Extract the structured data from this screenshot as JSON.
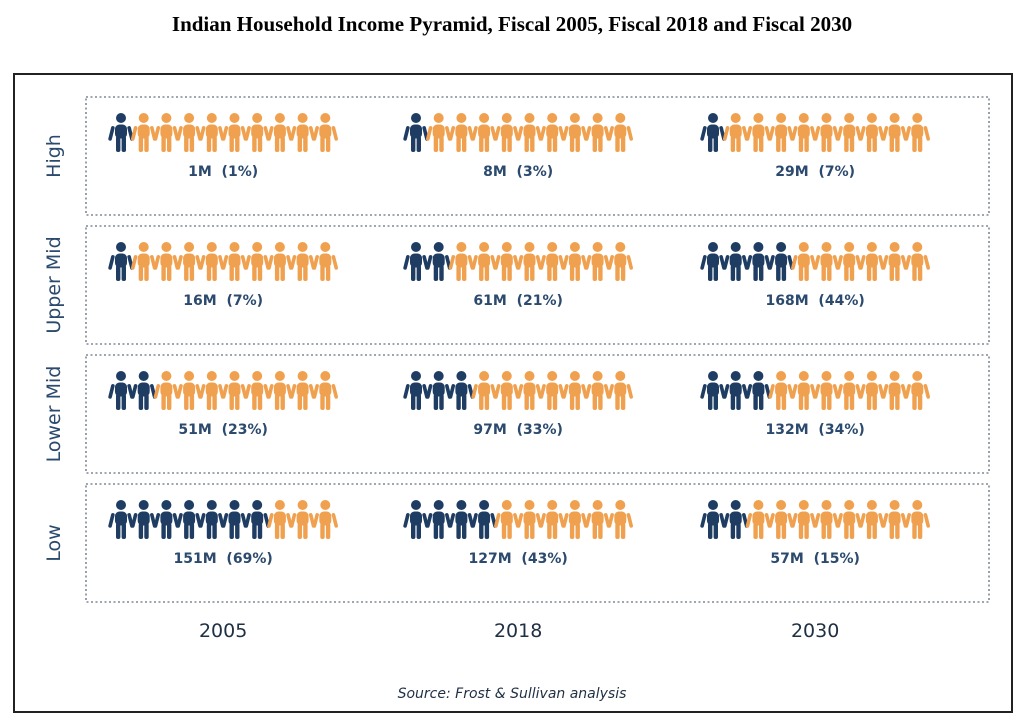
{
  "title": "Indian Household Income Pyramid, Fiscal 2005, Fiscal 2018 and Fiscal 2030",
  "source": "Source: Frost & Sullivan analysis",
  "colors": {
    "filled": "#1f3d63",
    "empty": "#f0a150",
    "text": "#2b4a6e"
  },
  "icon": "person-icon",
  "chart_data": {
    "type": "pictogram",
    "icons_per_cell": 10,
    "columns": [
      "2005",
      "2018",
      "2030"
    ],
    "rows": [
      {
        "label": "High",
        "cells": [
          {
            "filled": 1,
            "text": "1M  (1%)",
            "households_m": 1,
            "share_pct": 1
          },
          {
            "filled": 1,
            "text": "8M  (3%)",
            "households_m": 8,
            "share_pct": 3
          },
          {
            "filled": 1,
            "text": "29M  (7%)",
            "households_m": 29,
            "share_pct": 7
          }
        ]
      },
      {
        "label": "Upper Mid",
        "cells": [
          {
            "filled": 1,
            "text": "16M  (7%)",
            "households_m": 16,
            "share_pct": 7
          },
          {
            "filled": 2,
            "text": "61M  (21%)",
            "households_m": 61,
            "share_pct": 21
          },
          {
            "filled": 4,
            "text": "168M  (44%)",
            "households_m": 168,
            "share_pct": 44
          }
        ]
      },
      {
        "label": "Lower Mid",
        "cells": [
          {
            "filled": 2,
            "text": "51M  (23%)",
            "households_m": 51,
            "share_pct": 23
          },
          {
            "filled": 3,
            "text": "97M  (33%)",
            "households_m": 97,
            "share_pct": 33
          },
          {
            "filled": 3,
            "text": "132M  (34%)",
            "households_m": 132,
            "share_pct": 34
          }
        ]
      },
      {
        "label": "Low",
        "cells": [
          {
            "filled": 7,
            "text": "151M  (69%)",
            "households_m": 151,
            "share_pct": 69
          },
          {
            "filled": 4,
            "text": "127M  (43%)",
            "households_m": 127,
            "share_pct": 43
          },
          {
            "filled": 2,
            "text": "57M  (15%)",
            "households_m": 57,
            "share_pct": 15
          }
        ]
      }
    ]
  }
}
